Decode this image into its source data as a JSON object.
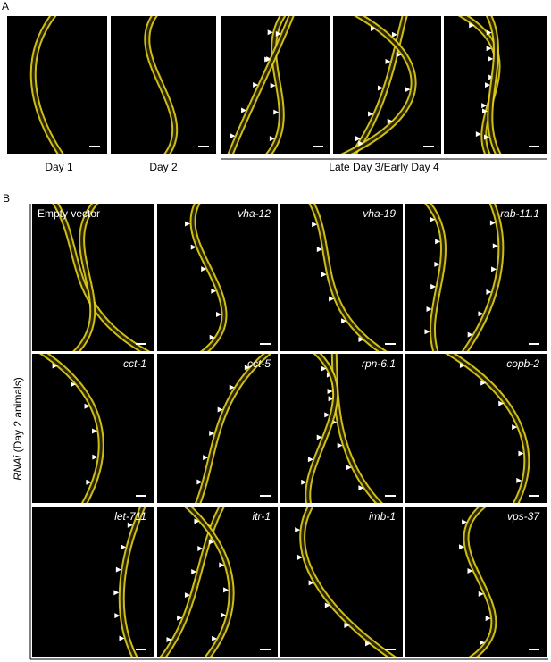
{
  "panel_a": {
    "label": "A",
    "captions": [
      "Day 1",
      "Day 2",
      "Late Day 3/Early Day 4"
    ]
  },
  "panel_b": {
    "label": "B",
    "axis_label": {
      "italic": "RNAi",
      "rest": "(Day 2 animals)"
    },
    "panels": [
      "Empty vector",
      "vha-12",
      "vha-19",
      "rab-11.1",
      "cct-1",
      "cct-5",
      "rpn-6.1",
      "copb-2",
      "let-711",
      "itr-1",
      "imb-1",
      "vps-37"
    ]
  }
}
